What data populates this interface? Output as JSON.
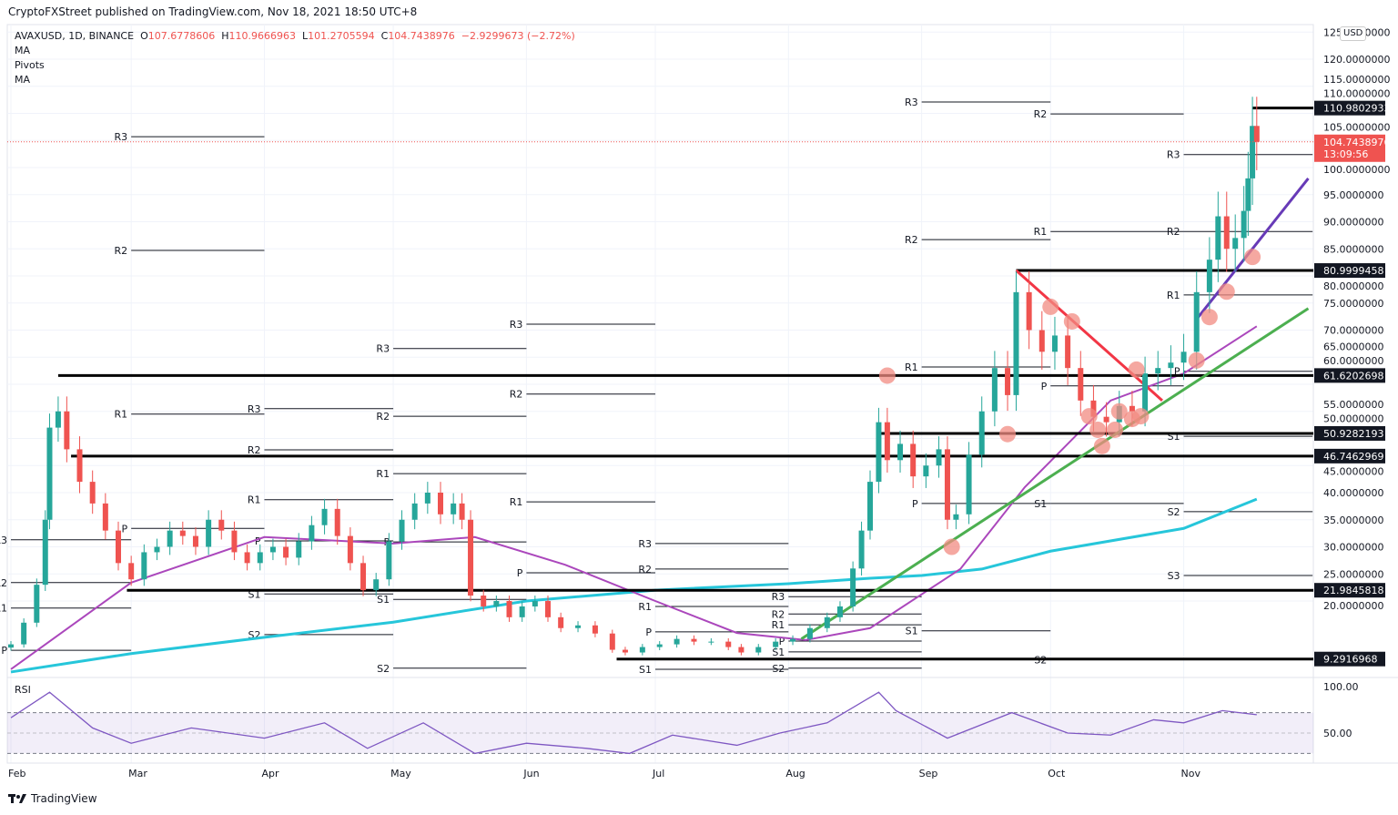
{
  "header": {
    "published": "CryptoFXStreet published on TradingView.com, Nov 18, 2021 18:50 UTC+8",
    "symbol": "AVAXUSD, 1D, BINANCE",
    "o_label": "O",
    "o": "107.6778606",
    "h_label": "H",
    "h": "110.9666963",
    "l_label": "L",
    "l": "101.2705594",
    "c_label": "C",
    "c": "104.7438976",
    "change": "−2.9299673 (−2.72%)",
    "indicators": [
      "MA",
      "Pivots",
      "MA"
    ]
  },
  "currency": "USD",
  "footer": {
    "brand": "TradingView"
  },
  "colors": {
    "up": "#26a69a",
    "down": "#ef5350",
    "ma_fast": "#ab47bc",
    "ma_slow": "#26c6da",
    "rsi": "#7e57c2",
    "trend_red": "#f23645",
    "trend_green": "#4caf50",
    "trend_purple": "#673ab7",
    "highlight": "#f28b82"
  },
  "chart_data": {
    "type": "candlestick",
    "title": "",
    "y_scale": "linear",
    "ylim": [
      0,
      125
    ],
    "y_ticks": [
      20,
      25,
      30,
      35,
      40,
      45,
      50,
      55,
      60,
      65,
      70,
      75,
      80,
      85,
      90,
      95,
      100,
      105,
      110,
      115,
      120,
      125
    ],
    "x_ticks": [
      {
        "date": "2021-02-01",
        "label": "Feb"
      },
      {
        "date": "2021-03-01",
        "label": "Mar"
      },
      {
        "date": "2021-04-01",
        "label": "Apr"
      },
      {
        "date": "2021-05-01",
        "label": "May"
      },
      {
        "date": "2021-06-01",
        "label": "Jun"
      },
      {
        "date": "2021-07-01",
        "label": "Jul"
      },
      {
        "date": "2021-08-01",
        "label": "Aug"
      },
      {
        "date": "2021-09-01",
        "label": "Sep"
      },
      {
        "date": "2021-10-01",
        "label": "Oct"
      },
      {
        "date": "2021-11-01",
        "label": "Nov"
      }
    ],
    "xlim": [
      "2021-02-01",
      "2021-12-05"
    ],
    "grid": true,
    "closes": [
      [
        "2021-02-01",
        12
      ],
      [
        "2021-02-04",
        16
      ],
      [
        "2021-02-07",
        23
      ],
      [
        "2021-02-09",
        35
      ],
      [
        "2021-02-10",
        52
      ],
      [
        "2021-02-12",
        55
      ],
      [
        "2021-02-14",
        48
      ],
      [
        "2021-02-17",
        42
      ],
      [
        "2021-02-20",
        38
      ],
      [
        "2021-02-23",
        33
      ],
      [
        "2021-02-26",
        27
      ],
      [
        "2021-03-01",
        24
      ],
      [
        "2021-03-04",
        29
      ],
      [
        "2021-03-07",
        30
      ],
      [
        "2021-03-10",
        33
      ],
      [
        "2021-03-13",
        32
      ],
      [
        "2021-03-16",
        30
      ],
      [
        "2021-03-19",
        35
      ],
      [
        "2021-03-22",
        33
      ],
      [
        "2021-03-25",
        29
      ],
      [
        "2021-03-28",
        27
      ],
      [
        "2021-03-31",
        29
      ],
      [
        "2021-04-03",
        30
      ],
      [
        "2021-04-06",
        28
      ],
      [
        "2021-04-09",
        31
      ],
      [
        "2021-04-12",
        34
      ],
      [
        "2021-04-15",
        37
      ],
      [
        "2021-04-18",
        32
      ],
      [
        "2021-04-21",
        27
      ],
      [
        "2021-04-24",
        22
      ],
      [
        "2021-04-27",
        24
      ],
      [
        "2021-04-30",
        31
      ],
      [
        "2021-05-03",
        35
      ],
      [
        "2021-05-06",
        38
      ],
      [
        "2021-05-09",
        40
      ],
      [
        "2021-05-12",
        36
      ],
      [
        "2021-05-15",
        38
      ],
      [
        "2021-05-17",
        35
      ],
      [
        "2021-05-19",
        21
      ],
      [
        "2021-05-22",
        19
      ],
      [
        "2021-05-25",
        20
      ],
      [
        "2021-05-28",
        17
      ],
      [
        "2021-05-31",
        19
      ],
      [
        "2021-06-03",
        20
      ],
      [
        "2021-06-06",
        17
      ],
      [
        "2021-06-09",
        15
      ],
      [
        "2021-06-13",
        15.5
      ],
      [
        "2021-06-17",
        14
      ],
      [
        "2021-06-21",
        11
      ],
      [
        "2021-06-24",
        10.5
      ],
      [
        "2021-06-28",
        11.5
      ],
      [
        "2021-07-02",
        12
      ],
      [
        "2021-07-06",
        13
      ],
      [
        "2021-07-10",
        12.5
      ],
      [
        "2021-07-14",
        12.5
      ],
      [
        "2021-07-18",
        11.5
      ],
      [
        "2021-07-21",
        10.5
      ],
      [
        "2021-07-25",
        11.5
      ],
      [
        "2021-07-29",
        12.5
      ],
      [
        "2021-08-02",
        13
      ],
      [
        "2021-08-06",
        15
      ],
      [
        "2021-08-10",
        17
      ],
      [
        "2021-08-13",
        19
      ],
      [
        "2021-08-16",
        26
      ],
      [
        "2021-08-18",
        33
      ],
      [
        "2021-08-20",
        42
      ],
      [
        "2021-08-22",
        53
      ],
      [
        "2021-08-24",
        46
      ],
      [
        "2021-08-27",
        49
      ],
      [
        "2021-08-30",
        43
      ],
      [
        "2021-09-02",
        45
      ],
      [
        "2021-09-05",
        48
      ],
      [
        "2021-09-07",
        35
      ],
      [
        "2021-09-09",
        36
      ],
      [
        "2021-09-12",
        47
      ],
      [
        "2021-09-15",
        55
      ],
      [
        "2021-09-18",
        63
      ],
      [
        "2021-09-21",
        58
      ],
      [
        "2021-09-23",
        77
      ],
      [
        "2021-09-26",
        70
      ],
      [
        "2021-09-29",
        66
      ],
      [
        "2021-10-02",
        69
      ],
      [
        "2021-10-05",
        63
      ],
      [
        "2021-10-08",
        57
      ],
      [
        "2021-10-11",
        54
      ],
      [
        "2021-10-14",
        53
      ],
      [
        "2021-10-17",
        56
      ],
      [
        "2021-10-20",
        55
      ],
      [
        "2021-10-23",
        62
      ],
      [
        "2021-10-26",
        63
      ],
      [
        "2021-10-29",
        64
      ],
      [
        "2021-11-01",
        66
      ],
      [
        "2021-11-04",
        77
      ],
      [
        "2021-11-07",
        83
      ],
      [
        "2021-11-09",
        91
      ],
      [
        "2021-11-11",
        85
      ],
      [
        "2021-11-13",
        87
      ],
      [
        "2021-11-15",
        92
      ],
      [
        "2021-11-16",
        98
      ],
      [
        "2021-11-17",
        107.68
      ],
      [
        "2021-11-18",
        104.74
      ]
    ],
    "last_price": {
      "value": "104.7438976",
      "countdown": "13:09:56"
    },
    "ma_fast": [
      [
        "2021-02-01",
        7.4
      ],
      [
        "2021-03-01",
        23.4
      ],
      [
        "2021-04-01",
        31.8
      ],
      [
        "2021-05-01",
        30.6
      ],
      [
        "2021-05-20",
        31.8
      ],
      [
        "2021-06-10",
        26.7
      ],
      [
        "2021-07-01",
        20
      ],
      [
        "2021-07-20",
        14.1
      ],
      [
        "2021-08-05",
        12.8
      ],
      [
        "2021-08-20",
        15
      ],
      [
        "2021-09-10",
        25.9
      ],
      [
        "2021-09-25",
        41
      ],
      [
        "2021-10-15",
        57
      ],
      [
        "2021-11-01",
        62
      ],
      [
        "2021-11-18",
        70.7
      ]
    ],
    "ma_slow": [
      [
        "2021-02-01",
        6.9
      ],
      [
        "2021-03-01",
        10.3
      ],
      [
        "2021-04-01",
        13.3
      ],
      [
        "2021-05-01",
        16.1
      ],
      [
        "2021-06-01",
        20
      ],
      [
        "2021-07-01",
        22
      ],
      [
        "2021-08-01",
        23.2
      ],
      [
        "2021-08-20",
        24.2
      ],
      [
        "2021-09-01",
        24.7
      ],
      [
        "2021-09-15",
        25.9
      ],
      [
        "2021-10-01",
        29.2
      ],
      [
        "2021-11-01",
        33.4
      ],
      [
        "2021-11-18",
        38.8
      ]
    ],
    "levels": [
      {
        "value": 110.9802933,
        "label": "110.9802933",
        "from": "2021-11-17"
      },
      {
        "value": 80.9999458,
        "label": "80.9999458",
        "from": "2021-09-23"
      },
      {
        "value": 61.6202698,
        "label": "61.6202698",
        "from": "2021-02-12"
      },
      {
        "value": 50.9282193,
        "label": "50.9282193",
        "from": "2021-08-22"
      },
      {
        "value": 46.7462969,
        "label": "46.7462969",
        "from": "2021-02-15"
      },
      {
        "value": 21.9845818,
        "label": "21.9845818",
        "from": "2021-02-28"
      },
      {
        "value": 9.2916968,
        "label": "9.2916968",
        "from": "2021-06-22"
      }
    ],
    "trendlines": [
      {
        "color": "#f23645",
        "from": [
          "2021-09-23",
          81
        ],
        "to": [
          "2021-10-27",
          57
        ]
      },
      {
        "color": "#4caf50",
        "from": [
          "2021-08-04",
          13
        ],
        "to": [
          "2021-11-30",
          74
        ]
      },
      {
        "color": "#673ab7",
        "from": [
          "2021-11-04",
          72
        ],
        "to": [
          "2021-11-30",
          98
        ]
      }
    ],
    "highlights": [
      [
        "2021-08-24",
        61.6
      ],
      [
        "2021-09-08",
        30
      ],
      [
        "2021-09-21",
        50.8
      ],
      [
        "2021-10-01",
        74.3
      ],
      [
        "2021-10-06",
        71.6
      ],
      [
        "2021-10-10",
        54.1
      ],
      [
        "2021-10-12",
        51.6
      ],
      [
        "2021-10-13",
        48.6
      ],
      [
        "2021-10-16",
        51.6
      ],
      [
        "2021-10-17",
        55
      ],
      [
        "2021-10-20",
        53.6
      ],
      [
        "2021-10-22",
        54.1
      ],
      [
        "2021-10-21",
        62.7
      ],
      [
        "2021-11-04",
        64.4
      ],
      [
        "2021-11-07",
        72.4
      ],
      [
        "2021-11-11",
        77.1
      ],
      [
        "2021-11-17",
        83.5
      ]
    ],
    "pivots": [
      {
        "from": "2021-02-01",
        "to": "2021-03-01",
        "levels": [
          [
            "R3",
            31.3
          ],
          [
            "R2",
            23.4
          ],
          [
            "R1",
            18.7
          ],
          [
            "P",
            10.9
          ]
        ]
      },
      {
        "from": "2021-03-01",
        "to": "2021-04-01",
        "levels": [
          [
            "R3",
            105.7
          ],
          [
            "R2",
            84.7
          ],
          [
            "R1",
            54.5
          ],
          [
            "P",
            33.4
          ]
        ]
      },
      {
        "from": "2021-04-01",
        "to": "2021-05-01",
        "levels": [
          [
            "R3",
            55.5
          ],
          [
            "R2",
            47.9
          ],
          [
            "R1",
            38.7
          ],
          [
            "P",
            31.1
          ],
          [
            "S1",
            21.3
          ],
          [
            "S2",
            13.8
          ]
        ]
      },
      {
        "from": "2021-05-01",
        "to": "2021-06-01",
        "levels": [
          [
            "R3",
            66.6
          ],
          [
            "R2",
            54.1
          ],
          [
            "R1",
            43.5
          ],
          [
            "P",
            30.9
          ],
          [
            "S1",
            20.3
          ],
          [
            "S2",
            7.6
          ]
        ]
      },
      {
        "from": "2021-06-01",
        "to": "2021-07-01",
        "levels": [
          [
            "R3",
            71.1
          ],
          [
            "R2",
            58.2
          ],
          [
            "R1",
            38.3
          ],
          [
            "P",
            25.2
          ]
        ]
      },
      {
        "from": "2021-07-01",
        "to": "2021-08-01",
        "levels": [
          [
            "R3",
            30.6
          ],
          [
            "R2",
            25.9
          ],
          [
            "R1",
            19.0
          ],
          [
            "P",
            14.3
          ],
          [
            "S1",
            7.4
          ]
        ]
      },
      {
        "from": "2021-08-01",
        "to": "2021-09-01",
        "levels": [
          [
            "R3",
            20.8
          ],
          [
            "R2",
            17.6
          ],
          [
            "R1",
            15.6
          ],
          [
            "P",
            12.6
          ],
          [
            "S1",
            10.6
          ],
          [
            "S2",
            7.6
          ]
        ]
      },
      {
        "from": "2021-09-01",
        "to": "2021-10-01",
        "levels": [
          [
            "R3",
            112.1
          ],
          [
            "R2",
            86.7
          ],
          [
            "R1",
            63.2
          ],
          [
            "P",
            38.0
          ],
          [
            "S1",
            14.5
          ]
        ]
      },
      {
        "from": "2021-10-01",
        "to": "2021-11-01",
        "levels": [
          [
            "R2",
            109.9
          ],
          [
            "R1",
            88.2
          ],
          [
            "P",
            59.7
          ],
          [
            "S1",
            38.0
          ],
          [
            "S2",
            9.2
          ]
        ]
      },
      {
        "from": "2021-11-01",
        "to": "2021-12-01",
        "levels": [
          [
            "R3",
            102.4
          ],
          [
            "R2",
            88.2
          ],
          [
            "R1",
            76.5
          ],
          [
            "P",
            62.4
          ],
          [
            "S1",
            50.4
          ],
          [
            "S2",
            36.5
          ],
          [
            "S3",
            24.7
          ]
        ]
      }
    ],
    "rsi": {
      "label": "RSI",
      "ylim": [
        0,
        100
      ],
      "bands": [
        30,
        70
      ],
      "y_ticks": [
        {
          "value": 100,
          "label": "100.00"
        },
        {
          "value": 50,
          "label": "50.00"
        }
      ],
      "values": [
        [
          "2021-02-01",
          65
        ],
        [
          "2021-02-10",
          90
        ],
        [
          "2021-02-20",
          55
        ],
        [
          "2021-03-01",
          40
        ],
        [
          "2021-03-15",
          55
        ],
        [
          "2021-04-01",
          45
        ],
        [
          "2021-04-15",
          60
        ],
        [
          "2021-04-25",
          35
        ],
        [
          "2021-05-08",
          60
        ],
        [
          "2021-05-20",
          30
        ],
        [
          "2021-06-01",
          40
        ],
        [
          "2021-06-15",
          35
        ],
        [
          "2021-06-25",
          30
        ],
        [
          "2021-07-05",
          48
        ],
        [
          "2021-07-20",
          38
        ],
        [
          "2021-07-30",
          50
        ],
        [
          "2021-08-10",
          60
        ],
        [
          "2021-08-22",
          90
        ],
        [
          "2021-08-26",
          72
        ],
        [
          "2021-09-07",
          45
        ],
        [
          "2021-09-22",
          70
        ],
        [
          "2021-10-05",
          50
        ],
        [
          "2021-10-15",
          48
        ],
        [
          "2021-10-25",
          63
        ],
        [
          "2021-11-01",
          60
        ],
        [
          "2021-11-10",
          72
        ],
        [
          "2021-11-18",
          68
        ]
      ]
    }
  }
}
